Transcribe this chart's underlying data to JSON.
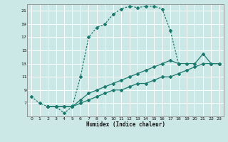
{
  "xlabel": "Humidex (Indice chaleur)",
  "bg_color": "#cce8e6",
  "grid_color": "#ffffff",
  "line_color": "#1a7a6e",
  "xlim": [
    -0.5,
    23.5
  ],
  "ylim": [
    5,
    22
  ],
  "yticks": [
    7,
    9,
    11,
    13,
    15,
    17,
    19,
    21
  ],
  "xticks": [
    0,
    1,
    2,
    3,
    4,
    5,
    6,
    7,
    8,
    9,
    10,
    11,
    12,
    13,
    14,
    15,
    16,
    17,
    18,
    19,
    20,
    21,
    22,
    23
  ],
  "curve1_x": [
    0,
    1,
    2,
    3,
    4,
    5,
    6,
    7,
    8,
    9,
    10,
    11,
    12,
    13,
    14,
    15,
    16,
    17,
    18
  ],
  "curve1_y": [
    8.0,
    7.0,
    6.5,
    6.5,
    5.5,
    6.5,
    11.0,
    17.0,
    18.5,
    19.0,
    20.5,
    21.3,
    21.7,
    21.5,
    21.7,
    21.7,
    21.3,
    18.0,
    13.0
  ],
  "curve2_x": [
    2,
    3,
    4,
    5,
    6,
    7,
    8,
    9,
    10,
    11,
    12,
    13,
    14,
    15,
    16,
    17,
    18,
    19,
    20,
    21,
    22,
    23
  ],
  "curve2_y": [
    6.5,
    6.5,
    6.5,
    6.5,
    7.5,
    8.5,
    9.0,
    9.5,
    10.0,
    10.5,
    11.0,
    11.5,
    12.0,
    12.5,
    13.0,
    13.5,
    13.0,
    13.0,
    13.0,
    14.5,
    13.0,
    13.0
  ],
  "curve3_x": [
    2,
    3,
    4,
    5,
    6,
    7,
    8,
    9,
    10,
    11,
    12,
    13,
    14,
    15,
    16,
    17,
    18,
    19,
    20,
    21,
    22,
    23
  ],
  "curve3_y": [
    6.5,
    6.5,
    6.5,
    6.5,
    7.0,
    7.5,
    8.0,
    8.5,
    9.0,
    9.0,
    9.5,
    10.0,
    10.0,
    10.5,
    11.0,
    11.0,
    11.5,
    12.0,
    12.5,
    13.0,
    13.0,
    13.0
  ]
}
